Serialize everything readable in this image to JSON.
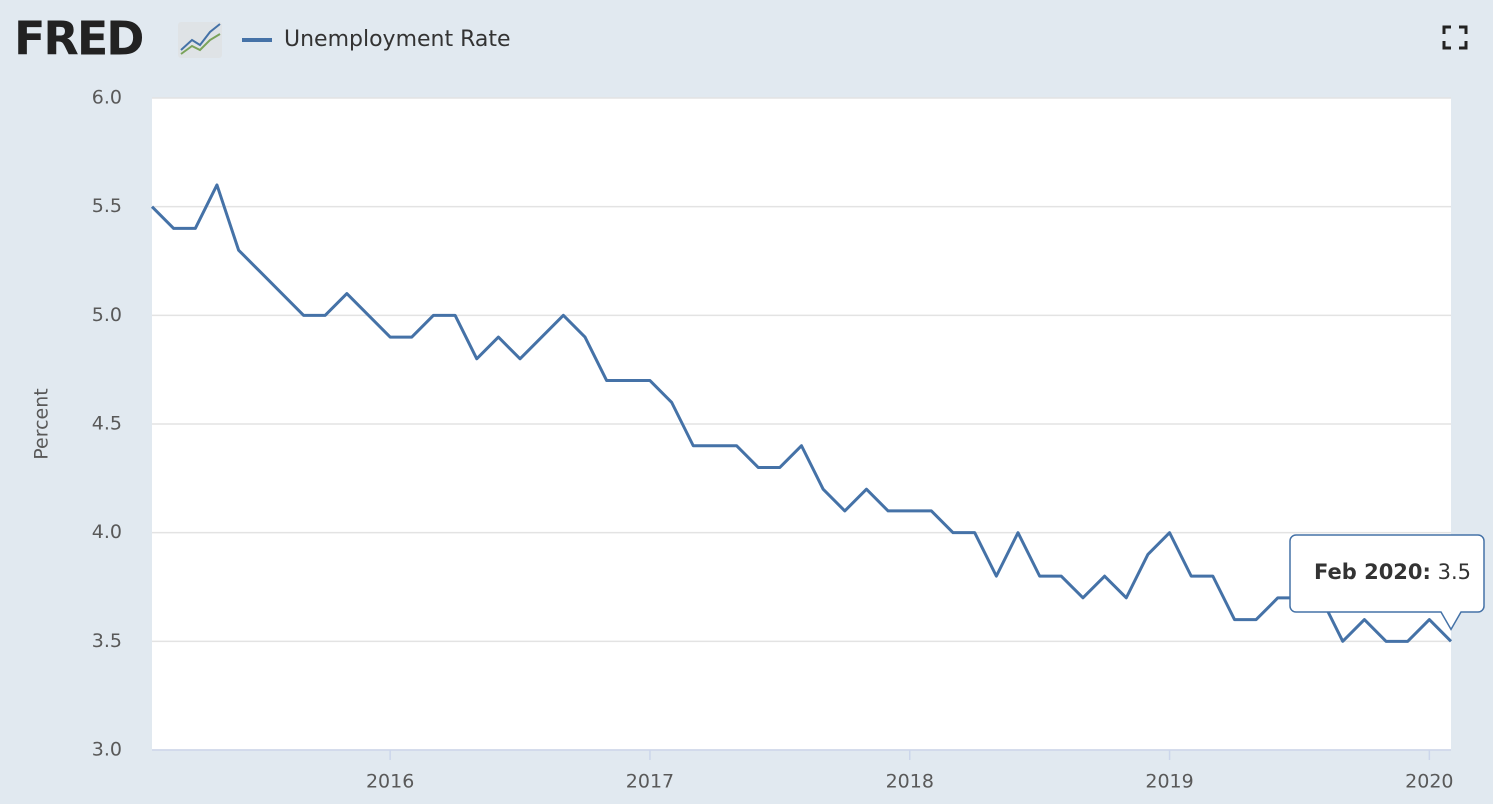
{
  "logo": "FRED",
  "chart_data": {
    "type": "line",
    "y_label": "Percent",
    "x": [
      "Feb 2015",
      "Mar 2015",
      "Apr 2015",
      "May 2015",
      "Jun 2015",
      "Jul 2015",
      "Aug 2015",
      "Sep 2015",
      "Oct 2015",
      "Nov 2015",
      "Dec 2015",
      "Jan 2016",
      "Feb 2016",
      "Mar 2016",
      "Apr 2016",
      "May 2016",
      "Jun 2016",
      "Jul 2016",
      "Aug 2016",
      "Sep 2016",
      "Oct 2016",
      "Nov 2016",
      "Dec 2016",
      "Jan 2017",
      "Feb 2017",
      "Mar 2017",
      "Apr 2017",
      "May 2017",
      "Jun 2017",
      "Jul 2017",
      "Aug 2017",
      "Sep 2017",
      "Oct 2017",
      "Nov 2017",
      "Dec 2017",
      "Jan 2018",
      "Feb 2018",
      "Mar 2018",
      "Apr 2018",
      "May 2018",
      "Jun 2018",
      "Jul 2018",
      "Aug 2018",
      "Sep 2018",
      "Oct 2018",
      "Nov 2018",
      "Dec 2018",
      "Jan 2019",
      "Feb 2019",
      "Mar 2019",
      "Apr 2019",
      "May 2019",
      "Jun 2019",
      "Jul 2019",
      "Aug 2019",
      "Sep 2019",
      "Oct 2019",
      "Nov 2019",
      "Dec 2019",
      "Jan 2020",
      "Feb 2020"
    ],
    "series": [
      {
        "name": "Unemployment Rate",
        "color": "#4572a7",
        "values": [
          5.5,
          5.4,
          5.4,
          5.6,
          5.3,
          5.2,
          5.1,
          5.0,
          5.0,
          5.1,
          5.0,
          4.9,
          4.9,
          5.0,
          5.0,
          4.8,
          4.9,
          4.8,
          4.9,
          5.0,
          4.9,
          4.7,
          4.7,
          4.7,
          4.6,
          4.4,
          4.4,
          4.4,
          4.3,
          4.3,
          4.4,
          4.2,
          4.1,
          4.2,
          4.1,
          4.1,
          4.1,
          4.0,
          4.0,
          3.8,
          4.0,
          3.8,
          3.8,
          3.7,
          3.8,
          3.7,
          3.9,
          4.0,
          3.8,
          3.8,
          3.6,
          3.6,
          3.7,
          3.7,
          3.7,
          3.5,
          3.6,
          3.5,
          3.5,
          3.6,
          3.5
        ]
      }
    ],
    "xlim": [
      "Feb 2015",
      "Feb 2020"
    ],
    "xticks": [
      {
        "value": "Jan 2016",
        "label": "2016"
      },
      {
        "value": "Jan 2017",
        "label": "2017"
      },
      {
        "value": "Jan 2018",
        "label": "2018"
      },
      {
        "value": "Jan 2019",
        "label": "2019"
      },
      {
        "value": "Jan 2020",
        "label": "2020"
      }
    ],
    "ylim": [
      3,
      6
    ],
    "yticks": [
      {
        "value": 3,
        "label": "3.0"
      },
      3.5,
      {
        "value": 4,
        "label": "4.0"
      },
      4.5,
      {
        "value": 5,
        "label": "5.0"
      },
      5.5,
      {
        "value": 6,
        "label": "6.0"
      }
    ],
    "grid": true,
    "tooltip": {
      "separator": ":"
    }
  }
}
